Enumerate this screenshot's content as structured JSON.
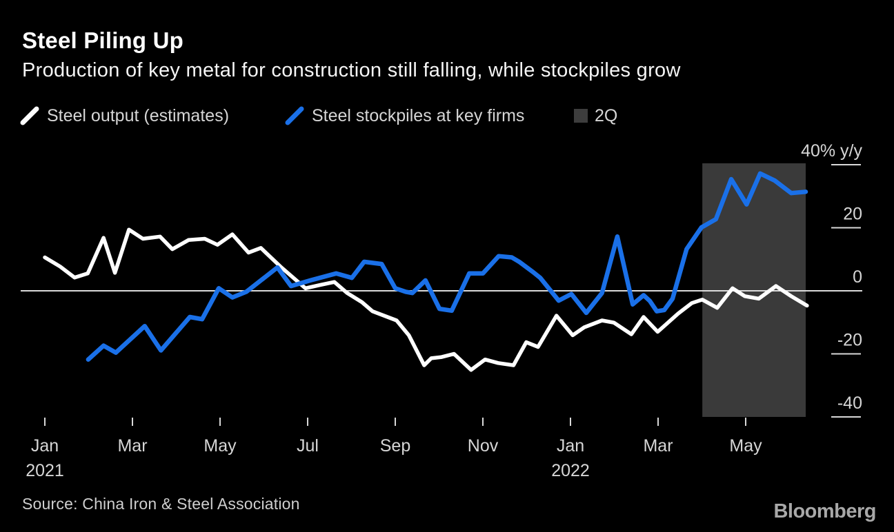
{
  "page": {
    "title": "Steel Piling Up",
    "subtitle": "Production of key metal for construction still falling, while stockpiles grow",
    "source": "Source: China Iron & Steel Association",
    "logo": "Bloomberg"
  },
  "chart_data": {
    "type": "line",
    "title": "Steel Piling Up",
    "subtitle": "Production of key metal for construction still falling, while stockpiles grow",
    "ylabel": "% y/y",
    "x_unit": "months since Jan 1, 2021 (0 = Jan 2021, 12 = Jan 2022)",
    "xlim": [
      -0.55,
      18.7
    ],
    "ylim": [
      -40.4,
      40.4
    ],
    "grid": false,
    "legend_position": "top",
    "background_color": "#000000",
    "zero_line_color": "#dcdcdc",
    "tick_color": "#d9d9d9",
    "label_color": "#d6d6d6",
    "legend": [
      {
        "label": "Steel output (estimates)",
        "swatch": "slash",
        "color": "#ffffff"
      },
      {
        "label": "Steel stockpiles at key firms",
        "swatch": "slash",
        "color": "#1a70e8"
      },
      {
        "label": "2Q",
        "swatch": "square",
        "color": "#3d3d3d"
      }
    ],
    "y_ticks": [
      {
        "value": 40,
        "label": "40% y/y"
      },
      {
        "value": 20,
        "label": "20"
      },
      {
        "value": 0,
        "label": "0"
      },
      {
        "value": -20,
        "label": "-20"
      },
      {
        "value": -40,
        "label": "-40"
      }
    ],
    "x_ticks": [
      {
        "month": 0,
        "label": "Jan",
        "year": "2021"
      },
      {
        "month": 2,
        "label": "Mar"
      },
      {
        "month": 4,
        "label": "May"
      },
      {
        "month": 6,
        "label": "Jul"
      },
      {
        "month": 8,
        "label": "Sep"
      },
      {
        "month": 10,
        "label": "Nov"
      },
      {
        "month": 12,
        "label": "Jan",
        "year": "2022"
      },
      {
        "month": 14,
        "label": "Mar"
      },
      {
        "month": 16,
        "label": "May"
      }
    ],
    "band": {
      "label": "2Q",
      "from_month": 15.01,
      "to_month": 17.37,
      "color": "#3a3a3a"
    },
    "series": [
      {
        "name": "Steel output (estimates)",
        "color": "#ffffff",
        "points": [
          [
            0,
            10.6
          ],
          [
            0.35,
            7.7
          ],
          [
            0.68,
            4.2
          ],
          [
            0.98,
            5.5
          ],
          [
            1.34,
            16.8
          ],
          [
            1.6,
            5.7
          ],
          [
            1.92,
            19.4
          ],
          [
            2.24,
            16.5
          ],
          [
            2.63,
            17.2
          ],
          [
            2.91,
            13.2
          ],
          [
            3.28,
            16.1
          ],
          [
            3.65,
            16.5
          ],
          [
            3.94,
            14.6
          ],
          [
            4.28,
            17.9
          ],
          [
            4.65,
            12.1
          ],
          [
            4.93,
            13.6
          ],
          [
            5.4,
            7.4
          ],
          [
            5.95,
            0.8
          ],
          [
            6.3,
            1.9
          ],
          [
            6.61,
            2.8
          ],
          [
            6.9,
            -0.7
          ],
          [
            7.24,
            -3.6
          ],
          [
            7.48,
            -6.5
          ],
          [
            8.03,
            -9.4
          ],
          [
            8.31,
            -14.1
          ],
          [
            8.66,
            -23.6
          ],
          [
            8.82,
            -21.4
          ],
          [
            9.06,
            -21
          ],
          [
            9.34,
            -20
          ],
          [
            9.73,
            -25.1
          ],
          [
            10.05,
            -21.8
          ],
          [
            10.35,
            -22.9
          ],
          [
            10.7,
            -23.6
          ],
          [
            10.99,
            -16.3
          ],
          [
            11.26,
            -17.8
          ],
          [
            11.68,
            -7.9
          ],
          [
            12.05,
            -14.1
          ],
          [
            12.31,
            -11.6
          ],
          [
            12.72,
            -9.4
          ],
          [
            12.99,
            -10.1
          ],
          [
            13.39,
            -13.8
          ],
          [
            13.67,
            -8.3
          ],
          [
            13.99,
            -13
          ],
          [
            14.46,
            -7.2
          ],
          [
            14.77,
            -3.9
          ],
          [
            15.01,
            -2.8
          ],
          [
            15.35,
            -5.4
          ],
          [
            15.7,
            0.8
          ],
          [
            15.98,
            -1.7
          ],
          [
            16.3,
            -2.5
          ],
          [
            16.69,
            1.5
          ],
          [
            17.04,
            -1.7
          ],
          [
            17.4,
            -4.7
          ]
        ]
      },
      {
        "name": "Steel stockpiles at key firms",
        "color": "#1a70e8",
        "points": [
          [
            0.99,
            -21.8
          ],
          [
            1.34,
            -17.4
          ],
          [
            1.62,
            -19.6
          ],
          [
            2.28,
            -11.2
          ],
          [
            2.65,
            -18.9
          ],
          [
            3.31,
            -8.3
          ],
          [
            3.59,
            -9
          ],
          [
            3.97,
            0.8
          ],
          [
            4.28,
            -2.1
          ],
          [
            4.6,
            -0.3
          ],
          [
            5.31,
            7.4
          ],
          [
            5.62,
            1.5
          ],
          [
            6.06,
            3.3
          ],
          [
            6.65,
            5.5
          ],
          [
            7.01,
            4.1
          ],
          [
            7.29,
            9.2
          ],
          [
            7.69,
            8.5
          ],
          [
            8,
            0.8
          ],
          [
            8.24,
            -0.3
          ],
          [
            8.39,
            -0.7
          ],
          [
            8.69,
            3.3
          ],
          [
            9.01,
            -5.7
          ],
          [
            9.29,
            -6.3
          ],
          [
            9.69,
            5.5
          ],
          [
            10,
            5.5
          ],
          [
            10.36,
            11
          ],
          [
            10.66,
            10.6
          ],
          [
            10.83,
            9.2
          ],
          [
            11.15,
            5.9
          ],
          [
            11.31,
            4.1
          ],
          [
            11.73,
            -3.1
          ],
          [
            12.02,
            -1
          ],
          [
            12.36,
            -7
          ],
          [
            12.72,
            -0.7
          ],
          [
            13.07,
            17.2
          ],
          [
            13.42,
            -4.3
          ],
          [
            13.67,
            -1.4
          ],
          [
            13.81,
            -3.2
          ],
          [
            13.97,
            -6.5
          ],
          [
            14.14,
            -6.1
          ],
          [
            14.33,
            -2.5
          ],
          [
            14.65,
            13.2
          ],
          [
            14.99,
            20.1
          ],
          [
            15.32,
            22.7
          ],
          [
            15.67,
            35.4
          ],
          [
            16.02,
            27.4
          ],
          [
            16.33,
            37.2
          ],
          [
            16.66,
            35
          ],
          [
            17.04,
            31
          ],
          [
            17.37,
            31.4
          ]
        ]
      }
    ]
  }
}
